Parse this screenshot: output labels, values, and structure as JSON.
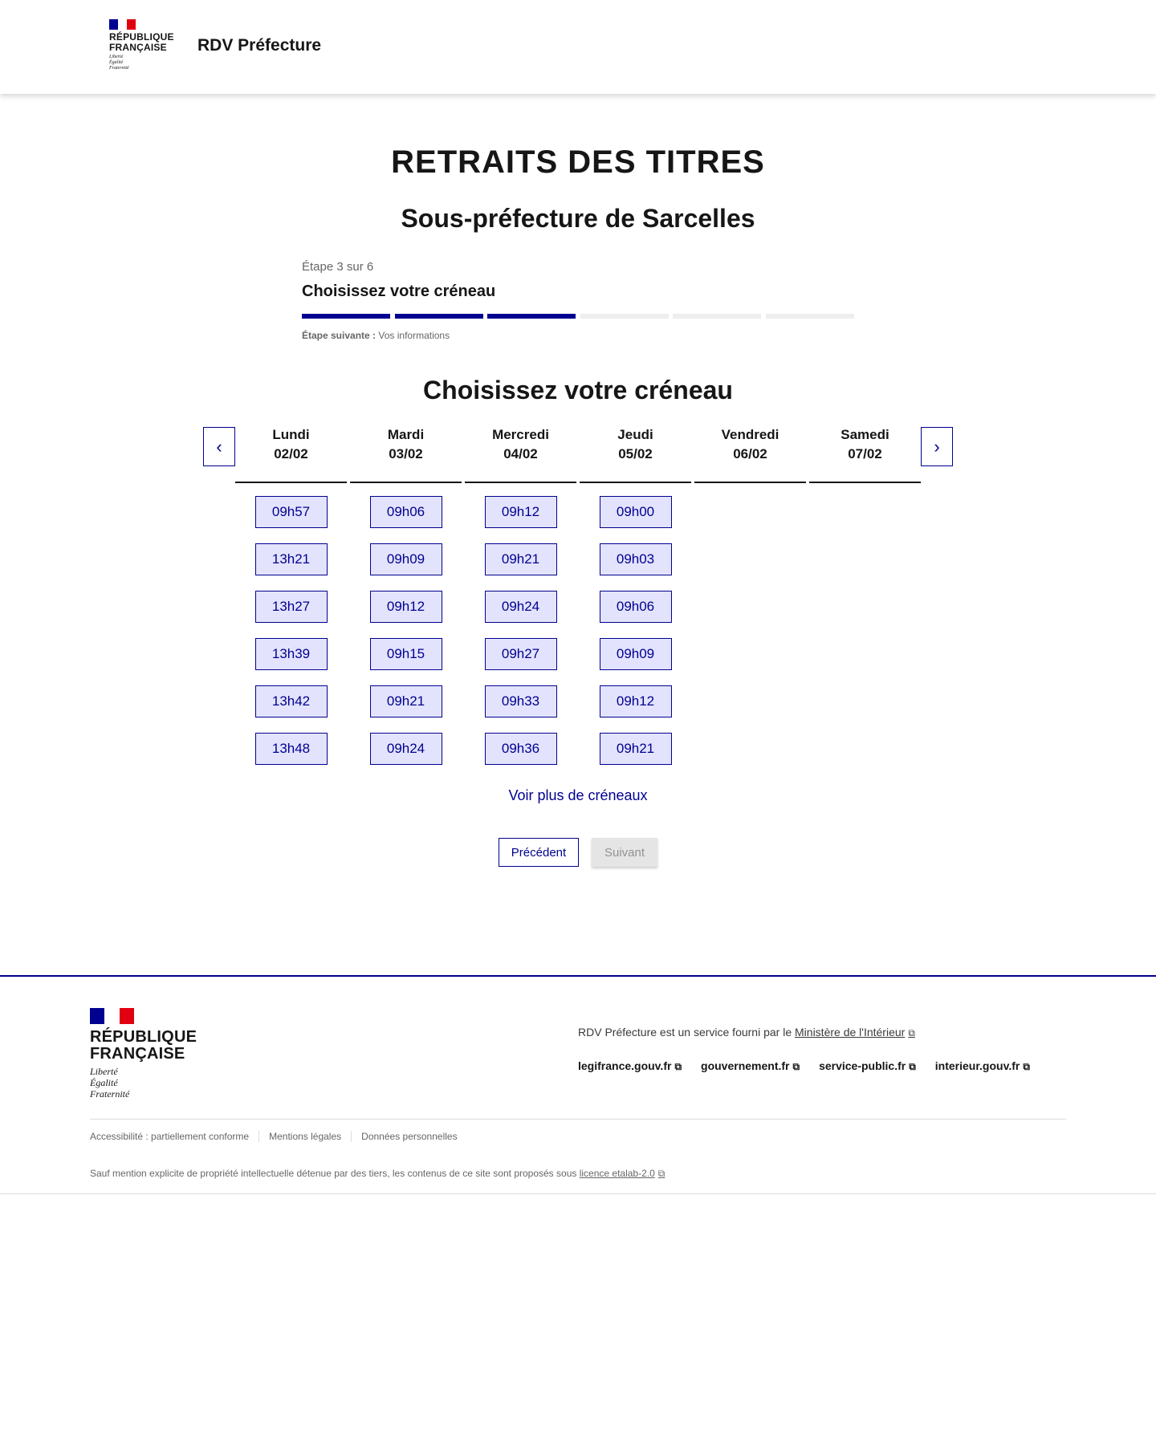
{
  "header": {
    "logo_lines": [
      "RÉPUBLIQUE",
      "FRANÇAISE"
    ],
    "motto": [
      "Liberté",
      "Égalité",
      "Fraternité"
    ],
    "service_title": "RDV Préfecture"
  },
  "colors": {
    "primary": "#000091",
    "slot_bg": "#e3e3fd",
    "inactive_bar": "#eeeeee"
  },
  "page": {
    "title": "RETRAITS DES TITRES",
    "subtitle": "Sous-préfecture de Sarcelles"
  },
  "stepper": {
    "state": "Étape 3 sur 6",
    "title": "Choisissez votre créneau",
    "current_step": 3,
    "total_steps": 6,
    "next_label": "Étape suivante :",
    "next_value": "Vos informations"
  },
  "calendar": {
    "heading": "Choisissez votre créneau",
    "prev_icon": "chevron-left-icon",
    "next_icon": "chevron-right-icon",
    "days": [
      {
        "name": "Lundi",
        "date": "02/02",
        "slots": [
          "09h57",
          "13h21",
          "13h27",
          "13h39",
          "13h42",
          "13h48"
        ]
      },
      {
        "name": "Mardi",
        "date": "03/02",
        "slots": [
          "09h06",
          "09h09",
          "09h12",
          "09h15",
          "09h21",
          "09h24"
        ]
      },
      {
        "name": "Mercredi",
        "date": "04/02",
        "slots": [
          "09h12",
          "09h21",
          "09h24",
          "09h27",
          "09h33",
          "09h36"
        ]
      },
      {
        "name": "Jeudi",
        "date": "05/02",
        "slots": [
          "09h00",
          "09h03",
          "09h06",
          "09h09",
          "09h12",
          "09h21"
        ]
      },
      {
        "name": "Vendredi",
        "date": "06/02",
        "slots": []
      },
      {
        "name": "Samedi",
        "date": "07/02",
        "slots": []
      }
    ],
    "more_label": "Voir plus de créneaux"
  },
  "actions": {
    "previous": "Précédent",
    "next": "Suivant"
  },
  "footer": {
    "logo_lines": [
      "RÉPUBLIQUE",
      "FRANÇAISE"
    ],
    "motto": [
      "Liberté",
      "Égalité",
      "Fraternité"
    ],
    "service_text": "RDV Préfecture est un service fourni par le ",
    "ministry_link": "Ministère de l'Intérieur",
    "links": [
      "legifrance.gouv.fr",
      "gouvernement.fr",
      "service-public.fr",
      "interieur.gouv.fr"
    ],
    "bottom_links": [
      "Accessibilité : partiellement conforme",
      "Mentions légales",
      "Données personnelles"
    ],
    "license_text": "Sauf mention explicite de propriété intellectuelle détenue par des tiers, les contenus de ce site sont proposés sous ",
    "license_link": "licence etalab-2.0"
  }
}
